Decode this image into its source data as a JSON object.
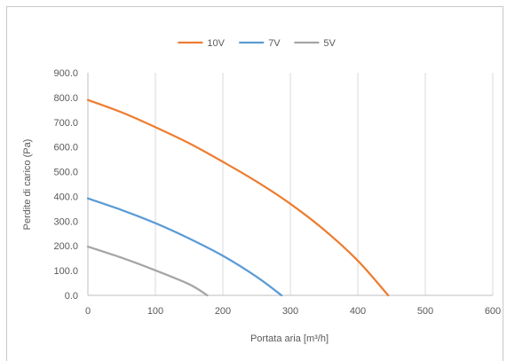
{
  "chart_data": {
    "type": "line",
    "xlabel": "Portata aria [m³/h]",
    "ylabel": "Perdite di carico (Pa)",
    "xlim": [
      0,
      600
    ],
    "ylim": [
      0,
      900
    ],
    "x_ticks": [
      "0",
      "100",
      "200",
      "300",
      "400",
      "500",
      "600"
    ],
    "y_ticks": [
      "0.0",
      "100.0",
      "200.0",
      "300.0",
      "400.0",
      "500.0",
      "600.0",
      "700.0",
      "800.0",
      "900.0"
    ],
    "grid": "vertical",
    "legend_position": "top",
    "series": [
      {
        "name": "10V",
        "color": "#ED7D31",
        "x": [
          0,
          50,
          100,
          150,
          200,
          250,
          300,
          350,
          400,
          445
        ],
        "y": [
          790,
          740,
          680,
          615,
          540,
          460,
          370,
          265,
          140,
          0
        ]
      },
      {
        "name": "7V",
        "color": "#5B9BD5",
        "x": [
          0,
          50,
          100,
          150,
          200,
          250,
          287
        ],
        "y": [
          392,
          345,
          292,
          230,
          160,
          75,
          0
        ]
      },
      {
        "name": "5V",
        "color": "#A5A5A5",
        "x": [
          0,
          50,
          100,
          150,
          177
        ],
        "y": [
          197,
          152,
          101,
          45,
          0
        ]
      }
    ]
  }
}
